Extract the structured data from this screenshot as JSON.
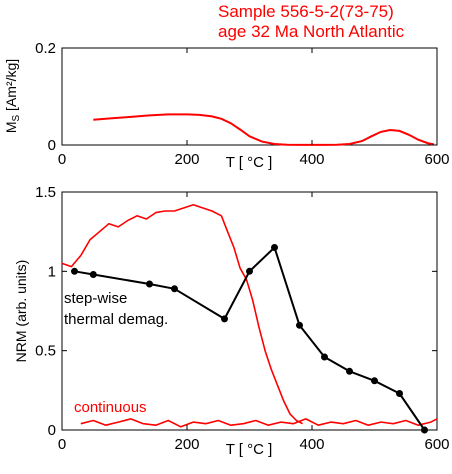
{
  "figure": {
    "title_line1": "Sample 556-5-2(73-75)",
    "title_line2": "age 32 Ma North Atlantic"
  },
  "chart_data": [
    {
      "type": "line",
      "ylabel_main": "M",
      "ylabel_sub": "S",
      "ylabel_units": " [Am²/kg]",
      "xlabel": "T [ °C ]",
      "xlim": [
        0,
        600
      ],
      "ylim": [
        0,
        0.2
      ],
      "xticks": [
        "0",
        "200",
        "400",
        "600"
      ],
      "yticks": [
        "0",
        "0.2"
      ],
      "line_color": "#ff0000",
      "series": [
        {
          "x": [
            50,
            80,
            110,
            140,
            170,
            200,
            220,
            240,
            255,
            270,
            285,
            300,
            320,
            340,
            360,
            380,
            400,
            420,
            440,
            460,
            480,
            495,
            510,
            525,
            540,
            555,
            570,
            585,
            595
          ],
          "y": [
            0.052,
            0.055,
            0.058,
            0.061,
            0.063,
            0.063,
            0.062,
            0.059,
            0.054,
            0.045,
            0.032,
            0.018,
            0.007,
            0.002,
            0.0005,
            0.0002,
            0.0002,
            0.0003,
            0.0006,
            0.002,
            0.008,
            0.018,
            0.027,
            0.031,
            0.029,
            0.021,
            0.011,
            0.004,
            0.0015
          ]
        }
      ]
    },
    {
      "type": "line",
      "ylabel": "NRM (arb. units)",
      "xlabel": "T [ °C ]",
      "xlim": [
        0,
        600
      ],
      "ylim": [
        0,
        1.5
      ],
      "xticks": [
        "0",
        "200",
        "400",
        "600"
      ],
      "yticks": [
        "0",
        "0.5",
        "1",
        "1.5"
      ],
      "annotations": {
        "stepwise_line1": "step-wise",
        "stepwise_line2": "thermal demag.",
        "continuous": "continuous"
      },
      "series": [
        {
          "color": "#000000",
          "markers": true,
          "x": [
            20,
            50,
            140,
            180,
            260,
            300,
            340,
            380,
            420,
            460,
            500,
            540,
            580
          ],
          "y": [
            1.0,
            0.98,
            0.92,
            0.89,
            0.7,
            1.0,
            1.15,
            0.66,
            0.46,
            0.37,
            0.31,
            0.23,
            0.0
          ]
        },
        {
          "color": "#ff0000",
          "markers": false,
          "x": [
            0,
            15,
            30,
            45,
            60,
            75,
            90,
            105,
            120,
            135,
            150,
            165,
            180,
            195,
            210,
            225,
            240,
            255,
            265,
            275,
            285,
            295,
            305,
            315,
            325,
            335,
            345,
            355,
            365,
            375,
            385
          ],
          "y": [
            1.05,
            1.03,
            1.1,
            1.2,
            1.25,
            1.3,
            1.28,
            1.32,
            1.35,
            1.33,
            1.37,
            1.38,
            1.38,
            1.4,
            1.42,
            1.4,
            1.38,
            1.35,
            1.25,
            1.15,
            1.02,
            0.95,
            0.82,
            0.65,
            0.5,
            0.38,
            0.28,
            0.18,
            0.1,
            0.06,
            0.04
          ]
        },
        {
          "color": "#ff0000",
          "markers": false,
          "x": [
            30,
            50,
            70,
            90,
            110,
            130,
            150,
            170,
            190,
            210,
            230,
            250,
            270,
            290,
            310,
            330,
            350,
            370,
            390,
            410,
            430,
            450,
            470,
            490,
            510,
            530,
            550,
            570,
            590,
            600
          ],
          "y": [
            0.04,
            0.06,
            0.03,
            0.05,
            0.07,
            0.04,
            0.03,
            0.06,
            0.02,
            0.05,
            0.04,
            0.06,
            0.03,
            0.04,
            0.06,
            0.03,
            0.05,
            0.04,
            0.07,
            0.03,
            0.05,
            0.04,
            0.06,
            0.03,
            0.05,
            0.04,
            0.06,
            0.03,
            0.05,
            0.07
          ]
        }
      ]
    }
  ]
}
